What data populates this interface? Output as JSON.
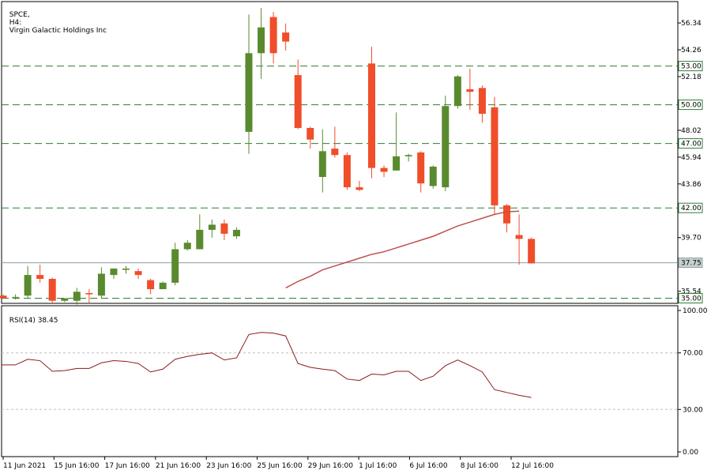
{
  "chart_data": [
    {
      "type": "candlestick",
      "symbol": "SPCE",
      "timeframe": "H4",
      "instrument_name": "Virgin Galactic Holdings Inc",
      "ylim": [
        34.6,
        58.0
      ],
      "y_ticks": [
        56.34,
        54.26,
        52.18,
        50.1,
        48.02,
        45.94,
        43.86,
        39.7,
        35.54
      ],
      "horizontal_levels": [
        {
          "value": 53.0,
          "label": "53.00"
        },
        {
          "value": 50.0,
          "label": "50.00"
        },
        {
          "value": 47.0,
          "label": "47.00"
        },
        {
          "value": 42.0,
          "label": "42.00"
        },
        {
          "value": 35.0,
          "label": "35.00"
        }
      ],
      "current_price": {
        "value": 37.75,
        "label": "37.75"
      },
      "x_ticks": [
        "11 Jun 2021",
        "15 Jun 16:00",
        "17 Jun 16:00",
        "21 Jun 16:00",
        "23 Jun 16:00",
        "25 Jun 16:00",
        "29 Jun 16:00",
        "1 Jul 16:00",
        "6 Jul 16:00",
        "8 Jul 16:00",
        "12 Jul 16:00"
      ],
      "candles": [
        {
          "o": 35.2,
          "h": 35.3,
          "l": 35.0,
          "c": 35.0
        },
        {
          "o": 35.1,
          "h": 35.3,
          "l": 34.9,
          "c": 35.1
        },
        {
          "o": 35.2,
          "h": 37.5,
          "l": 35.0,
          "c": 36.8
        },
        {
          "o": 36.8,
          "h": 37.6,
          "l": 36.2,
          "c": 36.5
        },
        {
          "o": 36.5,
          "h": 36.6,
          "l": 34.6,
          "c": 34.8
        },
        {
          "o": 34.8,
          "h": 35.0,
          "l": 34.7,
          "c": 35.0
        },
        {
          "o": 34.8,
          "h": 35.8,
          "l": 34.5,
          "c": 35.5
        },
        {
          "o": 35.4,
          "h": 35.7,
          "l": 34.6,
          "c": 35.3
        },
        {
          "o": 35.2,
          "h": 37.4,
          "l": 35.0,
          "c": 36.9
        },
        {
          "o": 36.8,
          "h": 37.3,
          "l": 36.5,
          "c": 37.3
        },
        {
          "o": 37.2,
          "h": 37.5,
          "l": 36.9,
          "c": 37.3
        },
        {
          "o": 37.1,
          "h": 37.3,
          "l": 36.5,
          "c": 36.8
        },
        {
          "o": 36.4,
          "h": 36.5,
          "l": 35.3,
          "c": 35.7
        },
        {
          "o": 35.7,
          "h": 36.3,
          "l": 35.7,
          "c": 36.2
        },
        {
          "o": 36.2,
          "h": 39.3,
          "l": 36.0,
          "c": 38.8
        },
        {
          "o": 38.8,
          "h": 39.5,
          "l": 38.7,
          "c": 39.3
        },
        {
          "o": 38.8,
          "h": 41.5,
          "l": 38.8,
          "c": 40.3
        },
        {
          "o": 40.3,
          "h": 41.1,
          "l": 39.7,
          "c": 40.7
        },
        {
          "o": 40.8,
          "h": 41.1,
          "l": 39.5,
          "c": 40.0
        },
        {
          "o": 39.8,
          "h": 40.5,
          "l": 39.6,
          "c": 40.3
        },
        {
          "o": 47.9,
          "h": 57.0,
          "l": 46.2,
          "c": 54.0
        },
        {
          "o": 54.0,
          "h": 57.5,
          "l": 52.0,
          "c": 56.0
        },
        {
          "o": 56.8,
          "h": 57.2,
          "l": 53.2,
          "c": 54.0
        },
        {
          "o": 55.6,
          "h": 56.3,
          "l": 54.2,
          "c": 54.9
        },
        {
          "o": 52.3,
          "h": 53.5,
          "l": 48.1,
          "c": 48.2
        },
        {
          "o": 48.2,
          "h": 48.3,
          "l": 46.6,
          "c": 47.3
        },
        {
          "o": 44.4,
          "h": 48.1,
          "l": 43.2,
          "c": 46.4
        },
        {
          "o": 46.6,
          "h": 48.3,
          "l": 45.9,
          "c": 46.1
        },
        {
          "o": 46.1,
          "h": 46.3,
          "l": 43.4,
          "c": 43.6
        },
        {
          "o": 43.6,
          "h": 44.1,
          "l": 43.3,
          "c": 43.4
        },
        {
          "o": 53.2,
          "h": 54.5,
          "l": 44.3,
          "c": 45.1
        },
        {
          "o": 45.1,
          "h": 45.3,
          "l": 44.4,
          "c": 44.8
        },
        {
          "o": 44.9,
          "h": 49.4,
          "l": 44.9,
          "c": 46.0
        },
        {
          "o": 46.0,
          "h": 46.2,
          "l": 45.6,
          "c": 46.1
        },
        {
          "o": 46.3,
          "h": 46.4,
          "l": 43.2,
          "c": 43.9
        },
        {
          "o": 43.7,
          "h": 45.3,
          "l": 43.5,
          "c": 45.2
        },
        {
          "o": 43.6,
          "h": 50.7,
          "l": 43.3,
          "c": 49.9
        },
        {
          "o": 49.9,
          "h": 52.3,
          "l": 49.7,
          "c": 52.2
        },
        {
          "o": 51.2,
          "h": 52.8,
          "l": 49.6,
          "c": 51.0
        },
        {
          "o": 51.3,
          "h": 51.5,
          "l": 48.6,
          "c": 49.3
        },
        {
          "o": 49.8,
          "h": 50.6,
          "l": 41.5,
          "c": 42.2
        },
        {
          "o": 42.2,
          "h": 42.3,
          "l": 40.1,
          "c": 40.8
        },
        {
          "o": 39.9,
          "h": 41.5,
          "l": 37.6,
          "c": 39.6
        },
        {
          "o": 39.6,
          "h": 39.7,
          "l": 37.7,
          "c": 37.7
        }
      ],
      "moving_average": {
        "color": "#c0504d",
        "points": [
          {
            "candle": 23,
            "y": 35.8
          },
          {
            "candle": 24,
            "y": 36.3
          },
          {
            "candle": 25,
            "y": 36.7
          },
          {
            "candle": 26,
            "y": 37.2
          },
          {
            "candle": 27,
            "y": 37.5
          },
          {
            "candle": 28,
            "y": 37.8
          },
          {
            "candle": 29,
            "y": 38.1
          },
          {
            "candle": 30,
            "y": 38.4
          },
          {
            "candle": 31,
            "y": 38.6
          },
          {
            "candle": 32,
            "y": 38.9
          },
          {
            "candle": 33,
            "y": 39.2
          },
          {
            "candle": 34,
            "y": 39.5
          },
          {
            "candle": 35,
            "y": 39.8
          },
          {
            "candle": 36,
            "y": 40.2
          },
          {
            "candle": 37,
            "y": 40.6
          },
          {
            "candle": 38,
            "y": 40.9
          },
          {
            "candle": 39,
            "y": 41.2
          },
          {
            "candle": 40,
            "y": 41.5
          },
          {
            "candle": 41,
            "y": 41.7
          },
          {
            "candle": 42,
            "y": 41.75
          }
        ]
      },
      "colors": {
        "bull": "#5a8a2e",
        "bear": "#f04d2a",
        "level": "#2e7d32",
        "price_line": "#8e9ea0"
      }
    },
    {
      "type": "line",
      "title": "RSI(14) 38.45",
      "ylim": [
        0,
        100
      ],
      "y_ticks": [
        100.0,
        70.0,
        30.0,
        0.0
      ],
      "y_tick_labels": [
        "100.00",
        "70.00",
        "30.00",
        "0.00"
      ],
      "reference_lines": [
        70,
        30
      ],
      "values": [
        61.5,
        61.5,
        65.5,
        64.5,
        57,
        57.5,
        59,
        59,
        63,
        64.5,
        64,
        62.5,
        56.5,
        58.5,
        65.5,
        67.5,
        69,
        70,
        65,
        66.5,
        83,
        84.5,
        84,
        82,
        62.5,
        59.8,
        58.5,
        57.5,
        51.5,
        50.5,
        55,
        54.5,
        57,
        57,
        50.5,
        53.5,
        61,
        65,
        61,
        56.5,
        44,
        42,
        40,
        38.45
      ],
      "color": "#8b1a1a"
    }
  ]
}
